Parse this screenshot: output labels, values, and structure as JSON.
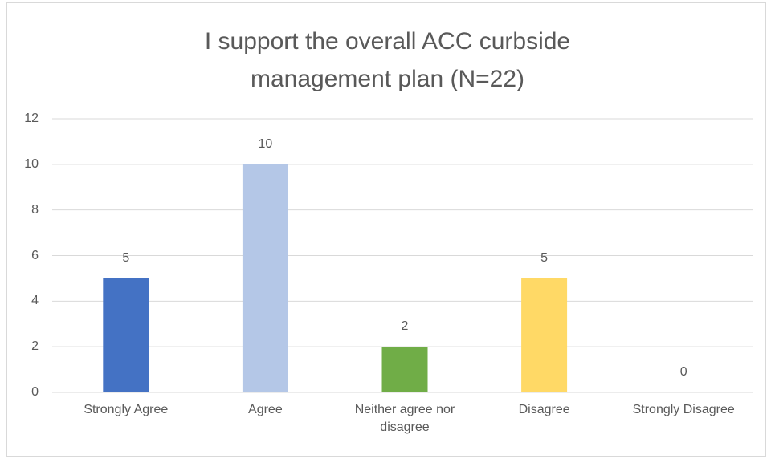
{
  "chart_data": {
    "type": "bar",
    "title": "I support the overall ACC curbside management plan (N=22)",
    "categories": [
      "Strongly Agree",
      "Agree",
      "Neither agree nor disagree",
      "Disagree",
      "Strongly Disagree"
    ],
    "values": [
      5,
      10,
      2,
      5,
      0
    ],
    "colors": [
      "#4472c4",
      "#b4c7e7",
      "#70ad47",
      "#ffd966"
    ],
    "ylim": [
      0,
      12
    ],
    "yticks": [
      0,
      2,
      4,
      6,
      8,
      10,
      12
    ],
    "grid": true
  }
}
